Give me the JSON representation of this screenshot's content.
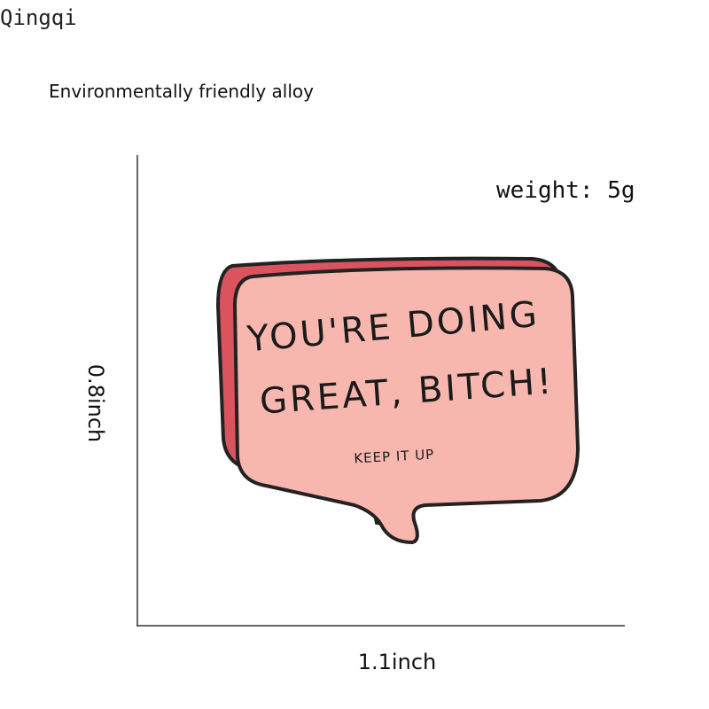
{
  "brand": "Qingqi",
  "material": "Environmentally friendly alloy",
  "weight": "weight: 5g",
  "height": "0.8inch",
  "width": "1.1inch",
  "pin": {
    "line1": "YOU'RE DOING",
    "line2": "GREAT, BITCH!",
    "line3": "KEEP IT UP"
  }
}
